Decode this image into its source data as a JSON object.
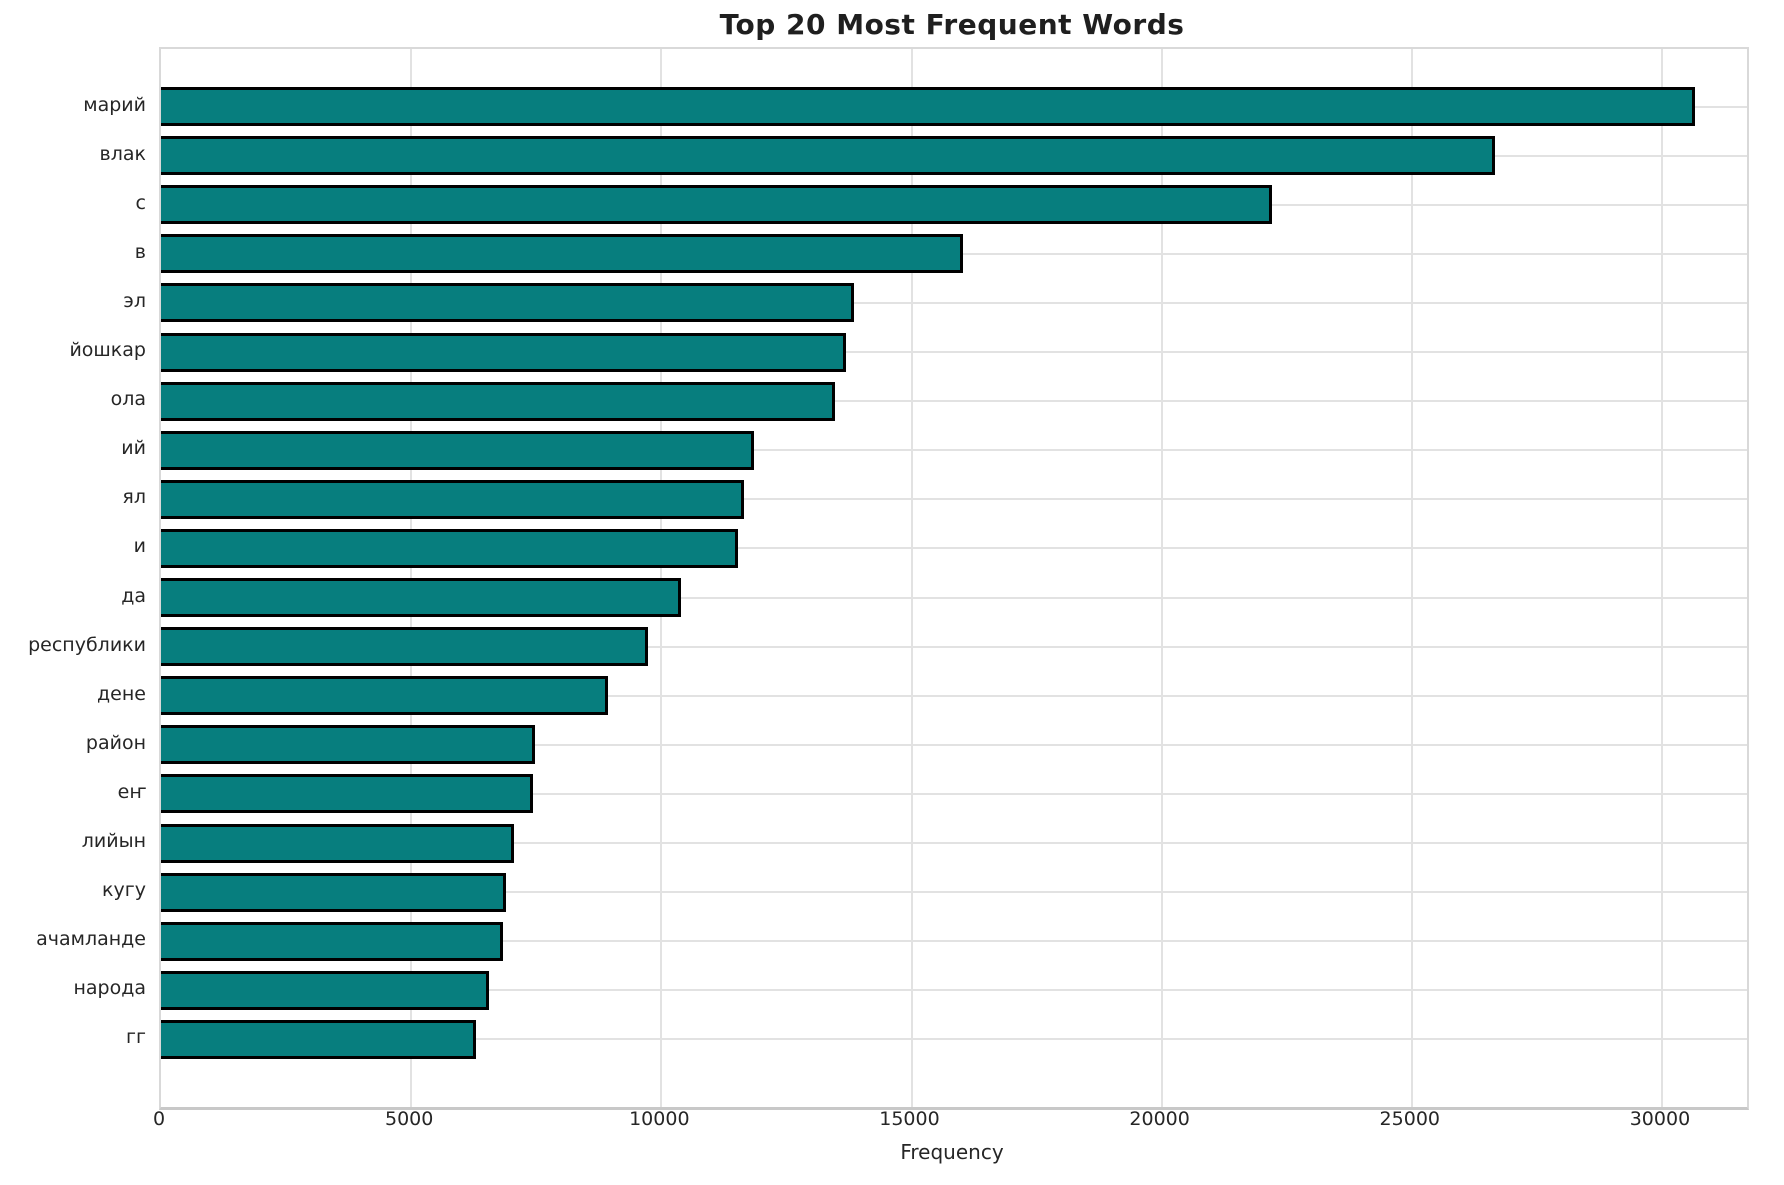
{
  "title": "Top 20 Most Frequent Words",
  "chart_data": {
    "type": "bar",
    "orientation": "horizontal",
    "title": "Top 20 Most Frequent Words",
    "xlabel": "Frequency",
    "ylabel": "",
    "categories": [
      "марий",
      "влак",
      "с",
      "в",
      "эл",
      "йошкар",
      "ола",
      "ий",
      "ял",
      "и",
      "да",
      "республики",
      "дене",
      "район",
      "еҥ",
      "лийын",
      "кугу",
      "ачамланде",
      "народа",
      "гг"
    ],
    "values": [
      30660,
      26660,
      22200,
      16020,
      13850,
      13690,
      13470,
      11850,
      11660,
      11540,
      10400,
      9740,
      8930,
      7480,
      7430,
      7060,
      6890,
      6830,
      6550,
      6290
    ],
    "x_ticks": [
      0,
      5000,
      10000,
      15000,
      20000,
      25000,
      30000
    ],
    "xlim": [
      0,
      31700
    ],
    "grid": true,
    "legend_position": "none",
    "bar_color": "#077e7e",
    "bar_edge_color": "#000000",
    "grid_color": "#e2e2e2",
    "background_color": "#ffffff"
  }
}
